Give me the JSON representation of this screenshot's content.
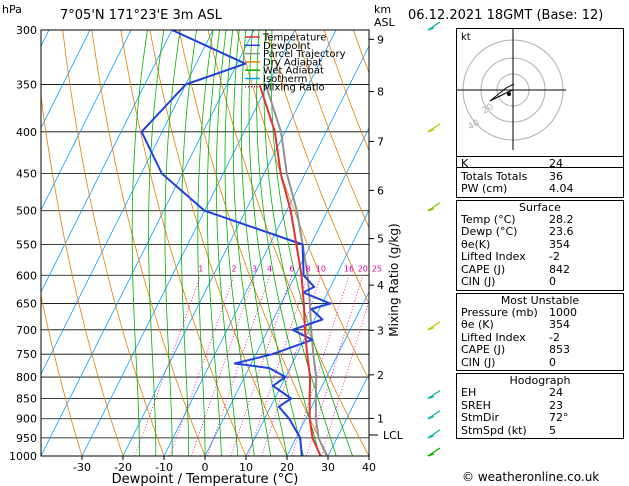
{
  "header": {
    "unit_hpa": "hPa",
    "location": "7°05'N  171°23'E  3m  ASL",
    "km_unit": "km",
    "asl_unit": "ASL",
    "datetime": "06.12.2021  18GMT  (Base: 12)"
  },
  "legend": [
    {
      "label": "Temperature",
      "color": "#e03030"
    },
    {
      "label": "Dewpoint",
      "color": "#2040e0"
    },
    {
      "label": "Parcel Trajectory",
      "color": "#909090"
    },
    {
      "label": "Dry Adiabat",
      "color": "#e08000"
    },
    {
      "label": "Wet Adiabat",
      "color": "#00b000"
    },
    {
      "label": "Isotherm",
      "color": "#00a0ff"
    },
    {
      "label": "Mixing Ratio",
      "color": "#e000a0"
    }
  ],
  "axes": {
    "xlabel": "Dewpoint / Temperature (°C)",
    "ylabel_right": "Mixing Ratio (g/kg)",
    "pressure_ticks": [
      "300",
      "350",
      "400",
      "450",
      "500",
      "550",
      "600",
      "650",
      "700",
      "750",
      "800",
      "850",
      "900",
      "950",
      "1000"
    ],
    "temp_ticks": [
      "-30",
      "-20",
      "-10",
      "0",
      "10",
      "20",
      "30",
      "40"
    ],
    "km_ticks": [
      "9",
      "8",
      "7",
      "6",
      "5",
      "4",
      "3",
      "2",
      "1"
    ],
    "lcl_label": "LCL",
    "mixing_ratio_labels": [
      "1",
      "2",
      "3",
      "4",
      "6",
      "8",
      "10",
      "16",
      "20",
      "25"
    ]
  },
  "chart_data": {
    "type": "line",
    "title": "7°05'N  171°23'E  3m  ASL",
    "xlabel": "Dewpoint / Temperature (°C)",
    "ylabel": "hPa",
    "xlim": [
      -40,
      40
    ],
    "ylim": [
      1000,
      300
    ],
    "series": [
      {
        "name": "Temperature",
        "pressure": [
          1000,
          950,
          900,
          850,
          800,
          750,
          700,
          650,
          600,
          550,
          500,
          450,
          400,
          350
        ],
        "values": [
          28.2,
          24.0,
          21.0,
          18.5,
          16.0,
          12.5,
          9.0,
          5.5,
          1.5,
          -3.5,
          -9.0,
          -16.0,
          -22.5,
          -32.0
        ]
      },
      {
        "name": "Dewpoint",
        "pressure": [
          1000,
          950,
          900,
          870,
          850,
          820,
          800,
          780,
          770,
          750,
          720,
          700,
          680,
          660,
          650,
          630,
          620,
          600,
          550,
          500,
          450,
          400,
          350,
          330,
          300
        ],
        "values": [
          23.6,
          21.0,
          16.0,
          12.0,
          14.0,
          8.0,
          10.0,
          5.0,
          -4.0,
          4.0,
          12.0,
          6.0,
          12.0,
          8.0,
          12.0,
          4.0,
          6.0,
          2.0,
          -2.0,
          -30.0,
          -45.0,
          -55.0,
          -50.0,
          -38.0,
          -60.0
        ]
      }
    ]
  },
  "indices": {
    "rows": [
      {
        "label": "K",
        "value": "24"
      },
      {
        "label": "Totals Totals",
        "value": "36"
      },
      {
        "label": "PW (cm)",
        "value": "4.04"
      }
    ]
  },
  "surface": {
    "title": "Surface",
    "rows": [
      {
        "label": "Temp (°C)",
        "value": "28.2"
      },
      {
        "label": "Dewp (°C)",
        "value": "23.6"
      },
      {
        "label": "θe(K)",
        "value": "354"
      },
      {
        "label": "Lifted Index",
        "value": "-2"
      },
      {
        "label": "CAPE (J)",
        "value": "842"
      },
      {
        "label": "CIN (J)",
        "value": "0"
      }
    ]
  },
  "most_unstable": {
    "title": "Most Unstable",
    "rows": [
      {
        "label": "Pressure (mb)",
        "value": "1000"
      },
      {
        "label": "θe (K)",
        "value": "354"
      },
      {
        "label": "Lifted Index",
        "value": "-2"
      },
      {
        "label": "CAPE (J)",
        "value": "853"
      },
      {
        "label": "CIN (J)",
        "value": "0"
      }
    ]
  },
  "hodograph_table": {
    "title": "Hodograph",
    "rows": [
      {
        "label": "EH",
        "value": "24"
      },
      {
        "label": "SREH",
        "value": "23"
      },
      {
        "label": "StmDir",
        "value": "72°"
      },
      {
        "label": "StmSpd (kt)",
        "value": "5"
      }
    ]
  },
  "hodograph": {
    "unit_label": "kt",
    "ring_labels": [
      "20",
      "40"
    ]
  },
  "footer": {
    "credit": "© weatheronline.co.uk"
  }
}
